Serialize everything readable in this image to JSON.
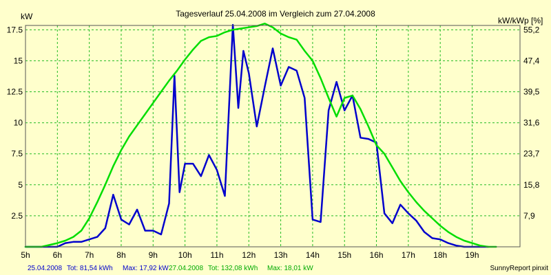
{
  "chart_data": {
    "type": "line",
    "title": "Tagesverlauf 25.04.2008 im Vergleich zum 27.04.2008",
    "ylabel": "kW",
    "ylabel_right": "kW/kWp [%]",
    "xlabel": "",
    "x_ticks": [
      "5h",
      "6h",
      "7h",
      "8h",
      "9h",
      "10h",
      "11h",
      "12h",
      "13h",
      "14h",
      "15h",
      "16h",
      "17h",
      "18h",
      "19h"
    ],
    "y_ticks": [
      "2.5",
      "5",
      "7.5",
      "10",
      "12.5",
      "15",
      "17.5"
    ],
    "y_ticks_values": [
      2.5,
      5,
      7.5,
      10,
      12.5,
      15,
      17.5
    ],
    "y2_ticks": [
      "7,9",
      "15,8",
      "23,7",
      "31,6",
      "39,5",
      "47,4",
      "55,2"
    ],
    "xlim": [
      5,
      20.5
    ],
    "ylim": [
      0,
      17.85
    ],
    "grid": true,
    "series": [
      {
        "name": "25.04.2008",
        "color": "#0000cc",
        "x": [
          5.0,
          5.5,
          6.0,
          6.25,
          6.5,
          6.75,
          7.0,
          7.25,
          7.5,
          7.75,
          8.0,
          8.25,
          8.5,
          8.75,
          9.0,
          9.25,
          9.5,
          9.67,
          9.83,
          10.0,
          10.25,
          10.5,
          10.75,
          11.0,
          11.25,
          11.5,
          11.67,
          11.83,
          12.0,
          12.25,
          12.5,
          12.75,
          13.0,
          13.25,
          13.5,
          13.75,
          14.0,
          14.25,
          14.5,
          14.75,
          15.0,
          15.25,
          15.5,
          15.75,
          16.0,
          16.25,
          16.5,
          16.75,
          17.0,
          17.25,
          17.5,
          17.75,
          18.0,
          18.25,
          18.5,
          18.75,
          19.0,
          19.25,
          19.5
        ],
        "y": [
          0,
          0,
          0,
          0.3,
          0.4,
          0.4,
          0.6,
          0.8,
          1.5,
          4.2,
          2.2,
          1.8,
          3.0,
          1.3,
          1.3,
          1.0,
          3.5,
          13.8,
          4.4,
          6.7,
          6.7,
          5.7,
          7.4,
          6.2,
          4.1,
          17.9,
          11.2,
          15.8,
          14.0,
          9.7,
          12.9,
          16.0,
          13.0,
          14.5,
          14.2,
          12.0,
          2.2,
          2.0,
          11.0,
          13.3,
          11.0,
          12.2,
          8.8,
          8.7,
          8.4,
          2.7,
          1.9,
          3.4,
          2.7,
          2.1,
          1.2,
          0.7,
          0.6,
          0.3,
          0.1,
          0.0,
          0,
          0,
          0
        ]
      },
      {
        "name": "27.04.2008",
        "color": "#00dd00",
        "x": [
          5.0,
          5.5,
          6.0,
          6.25,
          6.5,
          6.75,
          7.0,
          7.25,
          7.5,
          7.75,
          8.0,
          8.25,
          8.5,
          8.75,
          9.0,
          9.25,
          9.5,
          9.75,
          10.0,
          10.25,
          10.5,
          10.75,
          11.0,
          11.25,
          11.5,
          11.75,
          12.0,
          12.25,
          12.5,
          12.75,
          13.0,
          13.25,
          13.5,
          13.75,
          14.0,
          14.25,
          14.5,
          14.75,
          15.0,
          15.25,
          15.5,
          15.75,
          16.0,
          16.25,
          16.5,
          16.75,
          17.0,
          17.25,
          17.5,
          17.75,
          18.0,
          18.25,
          18.5,
          18.75,
          19.0,
          19.25,
          19.5,
          19.75
        ],
        "y": [
          0,
          0,
          0.3,
          0.5,
          0.8,
          1.3,
          2.3,
          3.6,
          5.0,
          6.5,
          7.8,
          8.9,
          9.8,
          10.7,
          11.6,
          12.5,
          13.4,
          14.2,
          15.1,
          15.9,
          16.6,
          16.9,
          17.0,
          17.3,
          17.5,
          17.6,
          17.7,
          17.8,
          18.0,
          17.7,
          17.2,
          16.9,
          16.7,
          15.8,
          15.0,
          13.6,
          12.0,
          10.5,
          12.0,
          12.2,
          11.1,
          9.7,
          8.2,
          7.5,
          6.4,
          5.3,
          4.4,
          3.6,
          2.9,
          2.3,
          1.7,
          1.2,
          0.8,
          0.5,
          0.3,
          0.1,
          0,
          0
        ]
      }
    ],
    "footer": {
      "s1_label": "25.04.2008",
      "s1_tot": "Tot: 81,54 kWh",
      "s1_max": "Max: 17,92 kW",
      "s2_label": "27.04.2008",
      "s2_tot": "Tot: 132,08 kWh",
      "s2_max": "Max: 18,01 kW",
      "brand": "SunnyReport pinxit"
    }
  }
}
